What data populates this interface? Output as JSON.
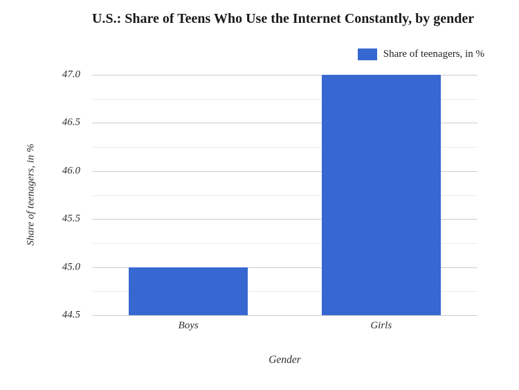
{
  "page": {
    "background": "#ffffff"
  },
  "header": {
    "title": "U.S.: Share of Teens Who Use the Internet Constantly, by gender"
  },
  "legend": {
    "label": "Share of teenagers, in %"
  },
  "colors": {
    "bar": "#3767d1",
    "grid_major": "#cccccc",
    "grid_minor": "#ececec",
    "title_text": "#1a1a1a",
    "axis_text": "#2e2e2e"
  },
  "chart_data": {
    "type": "bar",
    "title": "U.S.: Share of Teens Who Use the Internet Constantly, by gender",
    "categories": [
      "Boys",
      "Girls"
    ],
    "series": [
      {
        "name": "Share of teenagers, in %",
        "values": [
          45.0,
          47.0
        ]
      }
    ],
    "xlabel": "Gender",
    "ylabel": "Share of teenagers, in %",
    "ylim": [
      44.5,
      47.0
    ],
    "yticks": [
      44.5,
      45.0,
      45.5,
      46.0,
      46.5,
      47.0
    ],
    "ytick_labels": [
      "44.5",
      "45.0",
      "45.5",
      "46.0",
      "46.5",
      "47.0"
    ],
    "yticks_minor": [
      44.75,
      45.25,
      45.75,
      46.25,
      46.75
    ],
    "grid": true,
    "legend_position": "top-right",
    "bar_color": "#3767d1",
    "bar_width_fraction": 0.309
  }
}
